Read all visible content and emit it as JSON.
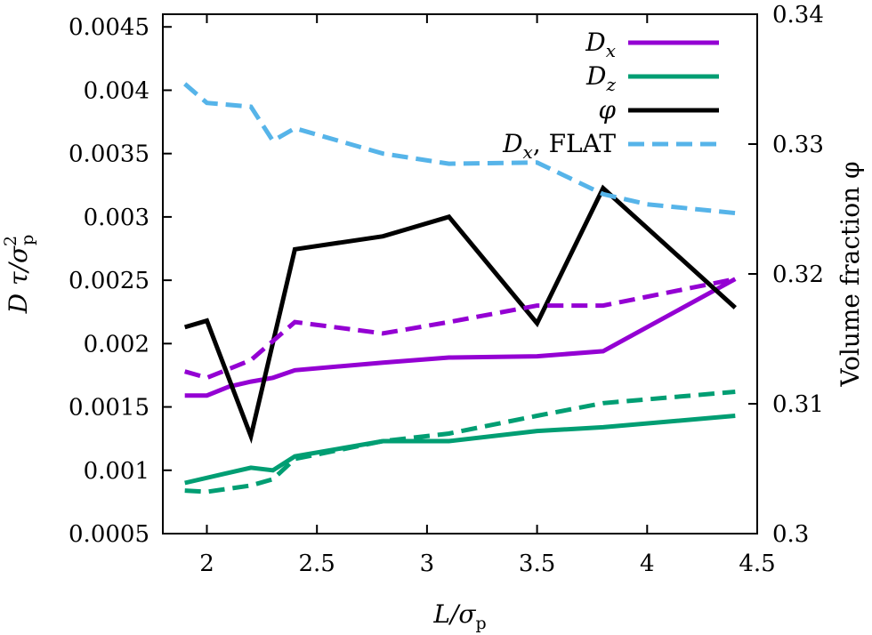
{
  "chart_data": {
    "type": "line",
    "xlabel": {
      "main": "L/σ",
      "sub": "p"
    },
    "ylabel_left": {
      "main": "D τ/σ",
      "sup": "2",
      "sub": "p"
    },
    "ylabel_right": {
      "main": "Volume fraction φ"
    },
    "xlim": [
      1.8,
      4.5
    ],
    "ylim_left": [
      0.0005,
      0.0046
    ],
    "ylim_right": [
      0.3,
      0.34
    ],
    "x_ticks": [
      {
        "value": 2,
        "label": "2"
      },
      {
        "value": 2.5,
        "label": "2.5"
      },
      {
        "value": 3,
        "label": "3"
      },
      {
        "value": 3.5,
        "label": "3.5"
      },
      {
        "value": 4,
        "label": "4"
      },
      {
        "value": 4.5,
        "label": "4.5"
      }
    ],
    "y_left_ticks": [
      {
        "value": 0.0005,
        "label": "0.0005"
      },
      {
        "value": 0.001,
        "label": "0.001"
      },
      {
        "value": 0.0015,
        "label": "0.0015"
      },
      {
        "value": 0.002,
        "label": "0.002"
      },
      {
        "value": 0.0025,
        "label": "0.0025"
      },
      {
        "value": 0.003,
        "label": "0.003"
      },
      {
        "value": 0.0035,
        "label": "0.0035"
      },
      {
        "value": 0.004,
        "label": "0.004"
      },
      {
        "value": 0.0045,
        "label": "0.0045"
      }
    ],
    "y_right_ticks": [
      {
        "value": 0.3,
        "label": "0.3"
      },
      {
        "value": 0.31,
        "label": "0.31"
      },
      {
        "value": 0.32,
        "label": "0.32"
      },
      {
        "value": 0.33,
        "label": "0.33"
      },
      {
        "value": 0.34,
        "label": "0.34"
      }
    ],
    "grid": false,
    "legend_position": "top-right",
    "series": [
      {
        "id": "dx",
        "name": "D",
        "name_sub": "x",
        "color": "#9400D3",
        "dash": "solid",
        "axis": "left",
        "in_legend": true,
        "x": [
          1.9,
          2.0,
          2.1,
          2.2,
          2.3,
          2.4,
          2.8,
          3.1,
          3.5,
          3.8,
          4.4
        ],
        "y": [
          0.00159,
          0.00159,
          0.00166,
          0.0017,
          0.00173,
          0.00179,
          0.00185,
          0.00189,
          0.0019,
          0.00194,
          0.00251
        ]
      },
      {
        "id": "dz",
        "name": "D",
        "name_sub": "z",
        "color": "#009E73",
        "dash": "solid",
        "axis": "left",
        "in_legend": true,
        "x": [
          1.9,
          2.2,
          2.3,
          2.4,
          2.8,
          3.1,
          3.5,
          3.8,
          4.4
        ],
        "y": [
          0.0009,
          0.00102,
          0.001,
          0.00111,
          0.00123,
          0.00123,
          0.00131,
          0.00134,
          0.00143
        ]
      },
      {
        "id": "phi",
        "name": "φ",
        "color": "#000000",
        "dash": "solid",
        "axis": "right",
        "in_legend": true,
        "x": [
          1.9,
          2.0,
          2.2,
          2.4,
          2.8,
          3.1,
          3.5,
          3.8,
          4.4
        ],
        "y": [
          0.3159,
          0.3164,
          0.3075,
          0.3219,
          0.3229,
          0.3244,
          0.3162,
          0.3266,
          0.3174
        ]
      },
      {
        "id": "dx_flat",
        "name": "D",
        "name_sub": "x",
        "name_suffix": ", FLAT",
        "color": "#56B4E9",
        "dash": "dashed",
        "axis": "left",
        "in_legend": true,
        "x": [
          1.9,
          2.0,
          2.2,
          2.3,
          2.4,
          2.8,
          3.1,
          3.5,
          3.8,
          4.0,
          4.4
        ],
        "y": [
          0.00405,
          0.0039,
          0.00387,
          0.0036,
          0.0037,
          0.0035,
          0.00342,
          0.00343,
          0.00318,
          0.0031,
          0.00303
        ]
      },
      {
        "id": "dx_flat_violet",
        "color": "#9400D3",
        "dash": "dashed",
        "axis": "left",
        "in_legend": false,
        "x": [
          1.9,
          2.0,
          2.2,
          2.4,
          2.8,
          3.1,
          3.5,
          3.8,
          4.4
        ],
        "y": [
          0.00178,
          0.00173,
          0.00187,
          0.00217,
          0.00208,
          0.00217,
          0.0023,
          0.0023,
          0.00251
        ]
      },
      {
        "id": "dz_flat",
        "color": "#009E73",
        "dash": "dashed",
        "axis": "left",
        "in_legend": false,
        "x": [
          1.9,
          2.0,
          2.2,
          2.3,
          2.4,
          2.8,
          3.1,
          3.5,
          3.8,
          4.4
        ],
        "y": [
          0.00084,
          0.00083,
          0.00088,
          0.00093,
          0.00109,
          0.00123,
          0.00129,
          0.00143,
          0.00153,
          0.00162
        ]
      }
    ]
  }
}
